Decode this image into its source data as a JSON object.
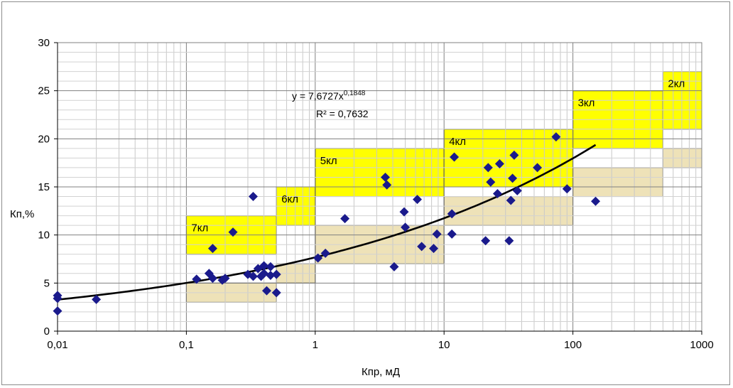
{
  "chart_data": {
    "type": "scatter",
    "title": "",
    "xlabel": "Кпр, мД",
    "ylabel": "Кп,%",
    "x_scale": "log",
    "xlim": [
      0.01,
      1000
    ],
    "ylim": [
      0,
      30
    ],
    "x_ticks": [
      "0,01",
      "0,1",
      "1",
      "10",
      "100",
      "1000"
    ],
    "y_ticks": [
      "0",
      "5",
      "10",
      "15",
      "20",
      "25",
      "30"
    ],
    "grid": true,
    "trendline": {
      "type": "power",
      "a": 7.6727,
      "b": 0.1848,
      "x_range": [
        0.01,
        150
      ],
      "equation": "y = 7,6727x",
      "exponent": "0,1848",
      "r_squared": "R² = 0,7632"
    },
    "zones": [
      {
        "label": "7кл",
        "x": [
          0.1,
          0.5
        ],
        "yellow": [
          8,
          12
        ],
        "tan": [
          3,
          5
        ],
        "color_upper": "#ffff00",
        "color_lower": "#eee2b8"
      },
      {
        "label": "6кл",
        "x": [
          0.5,
          1
        ],
        "yellow": [
          11,
          15
        ],
        "tan": [
          5,
          7
        ]
      },
      {
        "label": "5кл",
        "x": [
          1,
          10
        ],
        "yellow": [
          14,
          19
        ],
        "tan": [
          7,
          11
        ]
      },
      {
        "label": "4кл",
        "x": [
          10,
          100
        ],
        "yellow": [
          15,
          21
        ],
        "tan": [
          11,
          14
        ]
      },
      {
        "label": "3кл",
        "x": [
          100,
          500
        ],
        "yellow": [
          19,
          25
        ],
        "tan": [
          14,
          17
        ]
      },
      {
        "label": "2кл",
        "x": [
          500,
          1000
        ],
        "yellow": [
          21,
          27
        ],
        "tan": [
          17,
          19
        ]
      }
    ],
    "series": [
      {
        "marker_color": "#1a1a8c",
        "points": [
          [
            0.01,
            3.7
          ],
          [
            0.01,
            3.4
          ],
          [
            0.01,
            2.1
          ],
          [
            0.02,
            3.3
          ],
          [
            0.12,
            5.4
          ],
          [
            0.15,
            6.0
          ],
          [
            0.16,
            5.5
          ],
          [
            0.16,
            8.6
          ],
          [
            0.19,
            5.3
          ],
          [
            0.2,
            5.5
          ],
          [
            0.23,
            10.3
          ],
          [
            0.3,
            5.9
          ],
          [
            0.33,
            5.7
          ],
          [
            0.33,
            14.0
          ],
          [
            0.36,
            6.5
          ],
          [
            0.38,
            5.7
          ],
          [
            0.4,
            6.8
          ],
          [
            0.4,
            6.0
          ],
          [
            0.42,
            4.2
          ],
          [
            0.45,
            6.7
          ],
          [
            0.45,
            5.8
          ],
          [
            0.5,
            5.9
          ],
          [
            0.5,
            4.0
          ],
          [
            1.05,
            7.6
          ],
          [
            1.2,
            8.1
          ],
          [
            1.7,
            11.7
          ],
          [
            3.5,
            16.0
          ],
          [
            3.6,
            15.2
          ],
          [
            4.1,
            6.7
          ],
          [
            4.9,
            12.4
          ],
          [
            5.0,
            10.8
          ],
          [
            6.2,
            13.7
          ],
          [
            6.7,
            8.8
          ],
          [
            8.3,
            8.6
          ],
          [
            8.8,
            10.1
          ],
          [
            11.5,
            10.1
          ],
          [
            11.5,
            12.2
          ],
          [
            12.0,
            18.1
          ],
          [
            21,
            9.4
          ],
          [
            22,
            17.0
          ],
          [
            23,
            15.5
          ],
          [
            26,
            14.3
          ],
          [
            27,
            17.4
          ],
          [
            32,
            9.4
          ],
          [
            33,
            13.6
          ],
          [
            34,
            15.9
          ],
          [
            35,
            18.3
          ],
          [
            37,
            14.6
          ],
          [
            53,
            17.0
          ],
          [
            74,
            20.2
          ],
          [
            90,
            14.8
          ],
          [
            150,
            13.5
          ]
        ]
      }
    ]
  }
}
